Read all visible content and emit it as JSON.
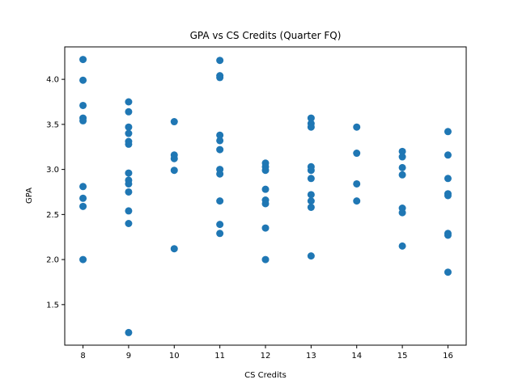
{
  "chart_data": {
    "type": "scatter",
    "title": "GPA vs CS Credits (Quarter FQ)",
    "xlabel": "CS Credits",
    "ylabel": "GPA",
    "xlim": [
      7.6,
      16.4
    ],
    "ylim": [
      1.05,
      4.36
    ],
    "xticks": [
      "8",
      "9",
      "10",
      "11",
      "12",
      "13",
      "14",
      "15",
      "16"
    ],
    "yticks": [
      "1.5",
      "2.0",
      "2.5",
      "3.0",
      "3.5",
      "4.0"
    ],
    "grid": false,
    "marker_color": "#1f77b4",
    "series": [
      {
        "points": [
          [
            8,
            4.22
          ],
          [
            8,
            3.99
          ],
          [
            8,
            3.71
          ],
          [
            8,
            3.57
          ],
          [
            8,
            3.54
          ],
          [
            8,
            2.81
          ],
          [
            8,
            2.68
          ],
          [
            8,
            2.59
          ],
          [
            8,
            2.0
          ],
          [
            9,
            3.75
          ],
          [
            9,
            3.64
          ],
          [
            9,
            3.47
          ],
          [
            9,
            3.4
          ],
          [
            9,
            3.31
          ],
          [
            9,
            3.28
          ],
          [
            9,
            2.96
          ],
          [
            9,
            2.88
          ],
          [
            9,
            2.84
          ],
          [
            9,
            2.75
          ],
          [
            9,
            2.54
          ],
          [
            9,
            2.4
          ],
          [
            9,
            1.19
          ],
          [
            10,
            3.53
          ],
          [
            10,
            3.16
          ],
          [
            10,
            3.12
          ],
          [
            10,
            2.99
          ],
          [
            10,
            2.12
          ],
          [
            11,
            4.21
          ],
          [
            11,
            4.04
          ],
          [
            11,
            4.02
          ],
          [
            11,
            3.38
          ],
          [
            11,
            3.32
          ],
          [
            11,
            3.22
          ],
          [
            11,
            3.0
          ],
          [
            11,
            2.95
          ],
          [
            11,
            2.65
          ],
          [
            11,
            2.39
          ],
          [
            11,
            2.29
          ],
          [
            12,
            3.07
          ],
          [
            12,
            3.03
          ],
          [
            12,
            2.99
          ],
          [
            12,
            2.78
          ],
          [
            12,
            2.66
          ],
          [
            12,
            2.62
          ],
          [
            12,
            2.35
          ],
          [
            12,
            2.0
          ],
          [
            13,
            3.57
          ],
          [
            13,
            3.51
          ],
          [
            13,
            3.47
          ],
          [
            13,
            3.03
          ],
          [
            13,
            2.99
          ],
          [
            13,
            2.9
          ],
          [
            13,
            2.72
          ],
          [
            13,
            2.65
          ],
          [
            13,
            2.58
          ],
          [
            13,
            2.04
          ],
          [
            14,
            3.47
          ],
          [
            14,
            3.18
          ],
          [
            14,
            2.84
          ],
          [
            14,
            2.65
          ],
          [
            15,
            3.2
          ],
          [
            15,
            3.14
          ],
          [
            15,
            3.02
          ],
          [
            15,
            2.94
          ],
          [
            15,
            2.57
          ],
          [
            15,
            2.52
          ],
          [
            15,
            2.15
          ],
          [
            16,
            3.42
          ],
          [
            16,
            3.16
          ],
          [
            16,
            2.9
          ],
          [
            16,
            2.73
          ],
          [
            16,
            2.71
          ],
          [
            16,
            2.29
          ],
          [
            16,
            2.27
          ],
          [
            16,
            1.86
          ]
        ]
      }
    ]
  }
}
